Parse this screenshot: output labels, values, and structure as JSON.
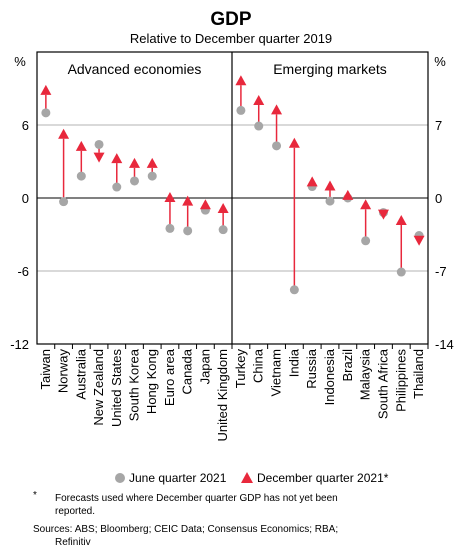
{
  "chart_data": {
    "type": "scatter",
    "title": "GDP",
    "subtitle": "Relative to December quarter 2019",
    "left_unit": "%",
    "right_unit": "%",
    "left_axis": {
      "ylim": [
        -12,
        12
      ],
      "ticks": [
        "6",
        "0",
        "-6",
        "-12"
      ]
    },
    "right_axis": {
      "ylim": [
        -14,
        14
      ],
      "ticks": [
        "7",
        "0",
        "-7",
        "-14"
      ]
    },
    "panels": [
      {
        "name": "Advanced economies",
        "axis": "left",
        "categories": [
          "Taiwan",
          "Norway",
          "Australia",
          "New Zealand",
          "United States",
          "South Korea",
          "Hong Kong",
          "Euro area",
          "Canada",
          "Japan",
          "United Kingdom"
        ],
        "june_2021": [
          7.0,
          -0.3,
          1.8,
          4.4,
          0.9,
          1.4,
          1.8,
          -2.5,
          -2.7,
          -1.0,
          -2.6
        ],
        "december_2021": [
          8.8,
          5.2,
          4.2,
          3.4,
          3.2,
          2.8,
          2.8,
          0.0,
          -0.3,
          -0.6,
          -0.9
        ]
      },
      {
        "name": "Emerging markets",
        "axis": "right",
        "categories": [
          "Turkey",
          "China",
          "Vietnam",
          "India",
          "Russia",
          "Indonesia",
          "Brazil",
          "Malaysia",
          "South Africa",
          "Philippines",
          "Thailand"
        ],
        "june_2021": [
          8.4,
          6.9,
          5.0,
          -8.8,
          1.1,
          -0.3,
          0.0,
          -4.1,
          -1.4,
          -7.1,
          -3.6
        ],
        "december_2021": [
          11.2,
          9.3,
          8.4,
          5.2,
          1.5,
          1.1,
          0.2,
          -0.7,
          -1.5,
          -2.2,
          -4.0
        ]
      }
    ],
    "legend": [
      {
        "label": "June quarter 2021",
        "color": "#a6a6a6",
        "marker": "circle"
      },
      {
        "label": "December quarter 2021*",
        "color": "#e8283c",
        "marker": "triangle"
      }
    ],
    "colors": {
      "june": "#a6a6a6",
      "december": "#e8283c",
      "grid": "#b3b3b3"
    }
  },
  "footnote": {
    "marker": "*",
    "text_line1": "Forecasts used where December quarter GDP has not yet been",
    "text_line2": "reported.",
    "sources_line1": "Sources: ABS; Bloomberg; CEIC Data; Consensus Economics; RBA;",
    "sources_line2": "Refinitiv"
  }
}
